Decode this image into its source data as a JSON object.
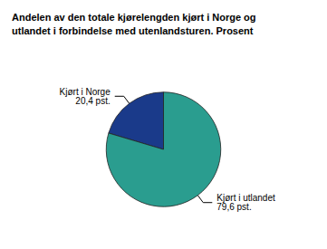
{
  "chart_data": {
    "type": "pie",
    "title": "Andelen av den totale kjørelengden kjørt i Norge og\nutlandet i forbindelse med utenlandsturen. Prosent",
    "categories": [
      "Kjørt i Norge",
      "Kjørt i utlandet"
    ],
    "values": [
      20.4,
      79.6
    ],
    "value_labels": [
      "20,4 pst.",
      "79,6 pst."
    ],
    "colors": [
      "#1a3a8a",
      "#2a9d8f"
    ],
    "data_labels": true,
    "legend": false
  }
}
